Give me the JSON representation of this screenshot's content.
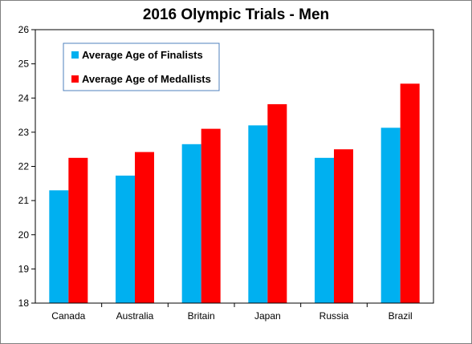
{
  "chart_data": {
    "type": "bar",
    "title": "2016 Olympic Trials - Men",
    "categories": [
      "Canada",
      "Australia",
      "Britain",
      "Japan",
      "Russia",
      "Brazil"
    ],
    "series": [
      {
        "name": "Average Age of Finalists",
        "color": "#00b0f0",
        "values": [
          21.3,
          21.73,
          22.65,
          23.2,
          22.25,
          23.13
        ]
      },
      {
        "name": "Average Age of Medallists",
        "color": "#ff0000",
        "values": [
          22.25,
          22.42,
          23.1,
          23.82,
          22.5,
          24.42
        ]
      }
    ],
    "ylim": [
      18,
      26
    ],
    "yticks": [
      18,
      19,
      20,
      21,
      22,
      23,
      24,
      25,
      26
    ],
    "grid": false,
    "legend": "top-left"
  }
}
